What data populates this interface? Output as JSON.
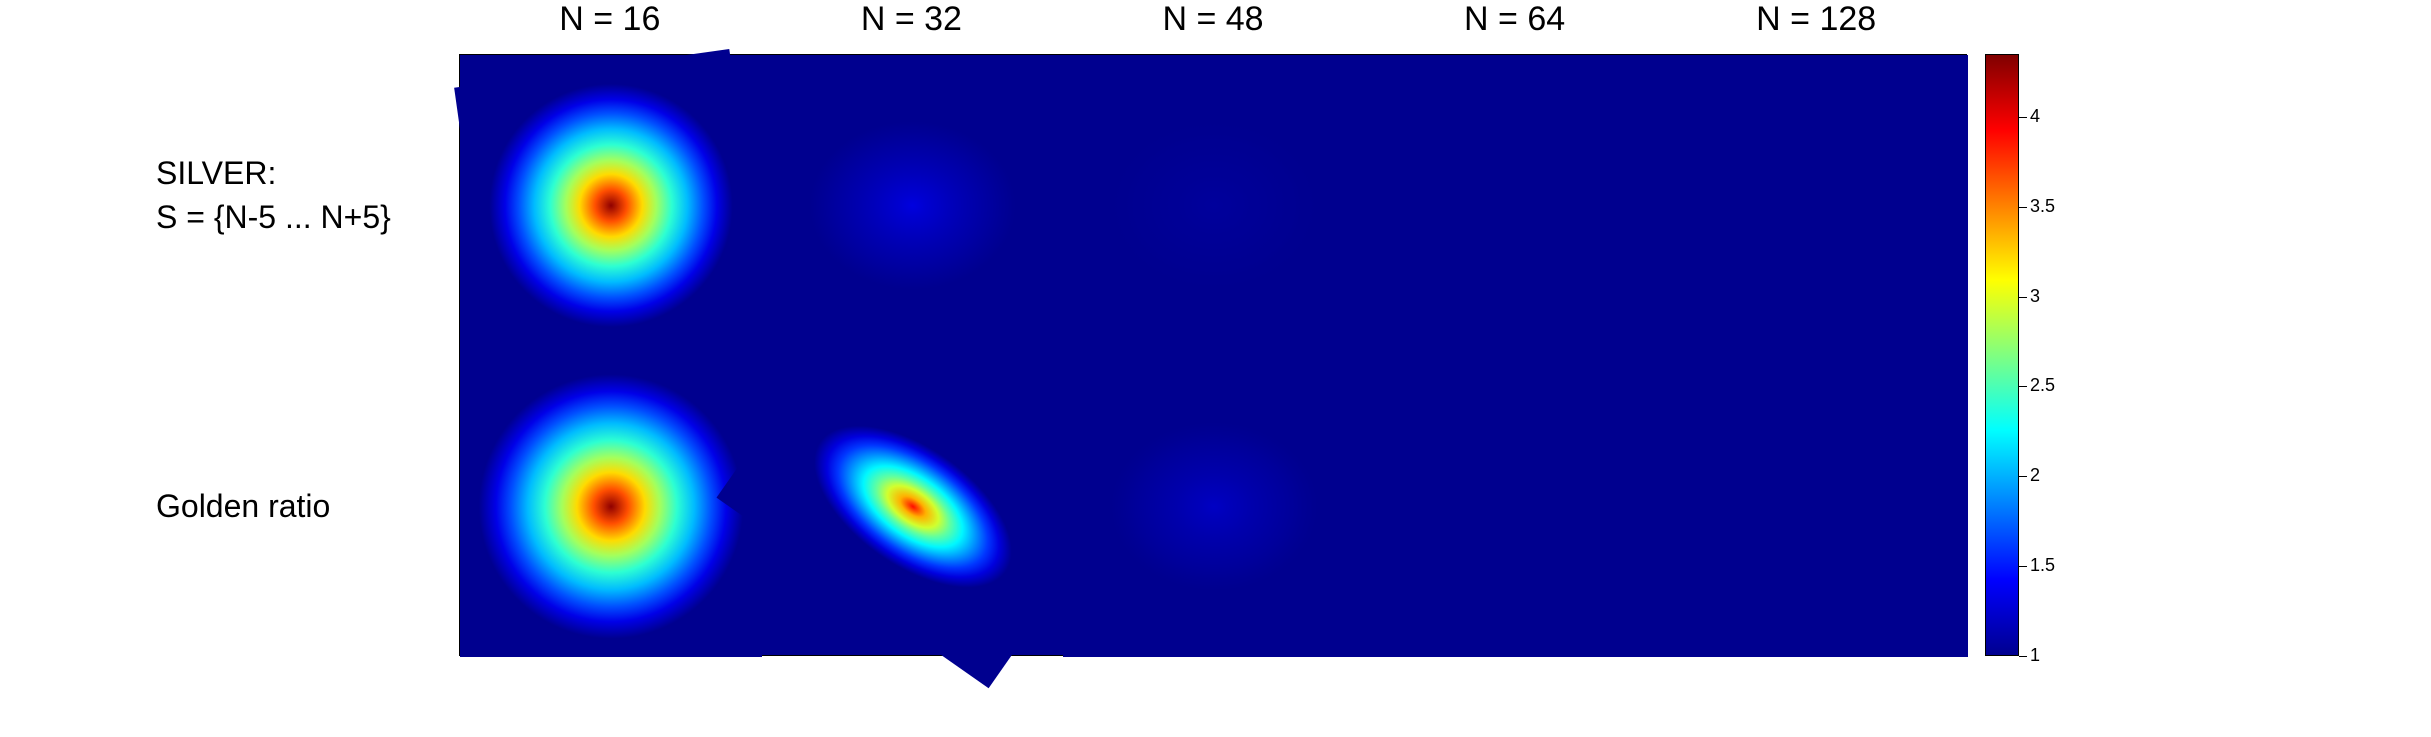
{
  "chart_data": {
    "type": "heatmap",
    "columns": [
      "N = 16",
      "N = 32",
      "N = 48",
      "N = 64",
      "N = 128"
    ],
    "rows": [
      {
        "label_lines": [
          "SILVER:",
          "S = {N-5 ... N+5}"
        ]
      },
      {
        "label_lines": [
          "Golden ratio"
        ]
      }
    ],
    "approx_peak_values": [
      [
        4.3,
        1.3,
        1.05,
        1.0,
        1.0
      ],
      [
        4.3,
        3.9,
        1.2,
        1.0,
        1.0
      ]
    ],
    "colorbar": {
      "colormap": "jet",
      "range": [
        1,
        4.35
      ],
      "ticks": [
        1,
        1.5,
        2,
        2.5,
        3,
        3.5,
        4
      ],
      "tick_labels": [
        "1",
        "1.5",
        "2",
        "2.5",
        "3",
        "3.5",
        "4"
      ]
    }
  }
}
